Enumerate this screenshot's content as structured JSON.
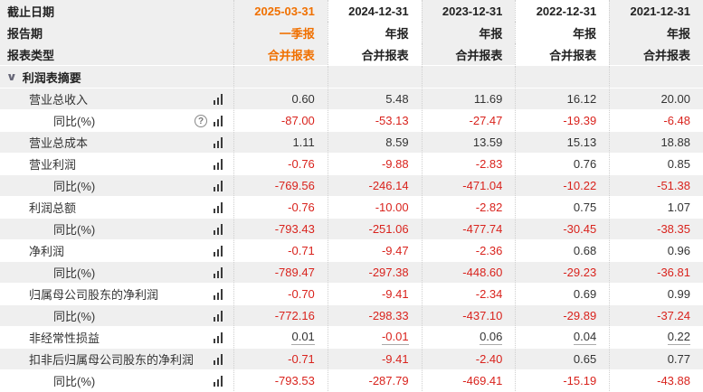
{
  "colors": {
    "accent_orange": "#f07000",
    "negative_red": "#d9231d",
    "row_alt_bg": "#efefef",
    "text_dark": "#333333"
  },
  "icons": {
    "help": "?",
    "caret": "∨"
  },
  "header": {
    "rows": [
      {
        "label": "截止日期",
        "values": [
          "2025-03-31",
          "2024-12-31",
          "2023-12-31",
          "2022-12-31",
          "2021-12-31"
        ]
      },
      {
        "label": "报告期",
        "values": [
          "一季报",
          "年报",
          "年报",
          "年报",
          "年报"
        ]
      },
      {
        "label": "报表类型",
        "values": [
          "合并报表",
          "合并报表",
          "合并报表",
          "合并报表",
          "合并报表"
        ]
      }
    ]
  },
  "section": {
    "title": "利润表摘要"
  },
  "table": {
    "rows": [
      {
        "label": "营业总收入",
        "indent": 1,
        "has_help": false,
        "underline": false,
        "values": [
          "0.60",
          "5.48",
          "11.69",
          "16.12",
          "20.00"
        ]
      },
      {
        "label": "同比(%)",
        "indent": 2,
        "has_help": true,
        "underline": false,
        "values": [
          "-87.00",
          "-53.13",
          "-27.47",
          "-19.39",
          "-6.48"
        ]
      },
      {
        "label": "营业总成本",
        "indent": 1,
        "has_help": false,
        "underline": false,
        "values": [
          "1.11",
          "8.59",
          "13.59",
          "15.13",
          "18.88"
        ]
      },
      {
        "label": "营业利润",
        "indent": 1,
        "has_help": false,
        "underline": false,
        "values": [
          "-0.76",
          "-9.88",
          "-2.83",
          "0.76",
          "0.85"
        ]
      },
      {
        "label": "同比(%)",
        "indent": 2,
        "has_help": false,
        "underline": false,
        "values": [
          "-769.56",
          "-246.14",
          "-471.04",
          "-10.22",
          "-51.38"
        ]
      },
      {
        "label": "利润总额",
        "indent": 1,
        "has_help": false,
        "underline": false,
        "values": [
          "-0.76",
          "-10.00",
          "-2.82",
          "0.75",
          "1.07"
        ]
      },
      {
        "label": "同比(%)",
        "indent": 2,
        "has_help": false,
        "underline": false,
        "values": [
          "-793.43",
          "-251.06",
          "-477.74",
          "-30.45",
          "-38.35"
        ]
      },
      {
        "label": "净利润",
        "indent": 1,
        "has_help": false,
        "underline": false,
        "values": [
          "-0.71",
          "-9.47",
          "-2.36",
          "0.68",
          "0.96"
        ]
      },
      {
        "label": "同比(%)",
        "indent": 2,
        "has_help": false,
        "underline": false,
        "values": [
          "-789.47",
          "-297.38",
          "-448.60",
          "-29.23",
          "-36.81"
        ]
      },
      {
        "label": "归属母公司股东的净利润",
        "indent": 1,
        "has_help": false,
        "underline": false,
        "values": [
          "-0.70",
          "-9.41",
          "-2.34",
          "0.69",
          "0.99"
        ]
      },
      {
        "label": "同比(%)",
        "indent": 2,
        "has_help": false,
        "underline": false,
        "values": [
          "-772.16",
          "-298.33",
          "-437.10",
          "-29.89",
          "-37.24"
        ]
      },
      {
        "label": "非经常性损益",
        "indent": 1,
        "has_help": false,
        "underline": true,
        "values": [
          "0.01",
          "-0.01",
          "0.06",
          "0.04",
          "0.22"
        ]
      },
      {
        "label": "扣非后归属母公司股东的净利润",
        "indent": 1,
        "has_help": false,
        "underline": false,
        "values": [
          "-0.71",
          "-9.41",
          "-2.40",
          "0.65",
          "0.77"
        ]
      },
      {
        "label": "同比(%)",
        "indent": 2,
        "has_help": false,
        "underline": false,
        "values": [
          "-793.53",
          "-287.79",
          "-469.41",
          "-15.19",
          "-43.88"
        ]
      }
    ]
  }
}
